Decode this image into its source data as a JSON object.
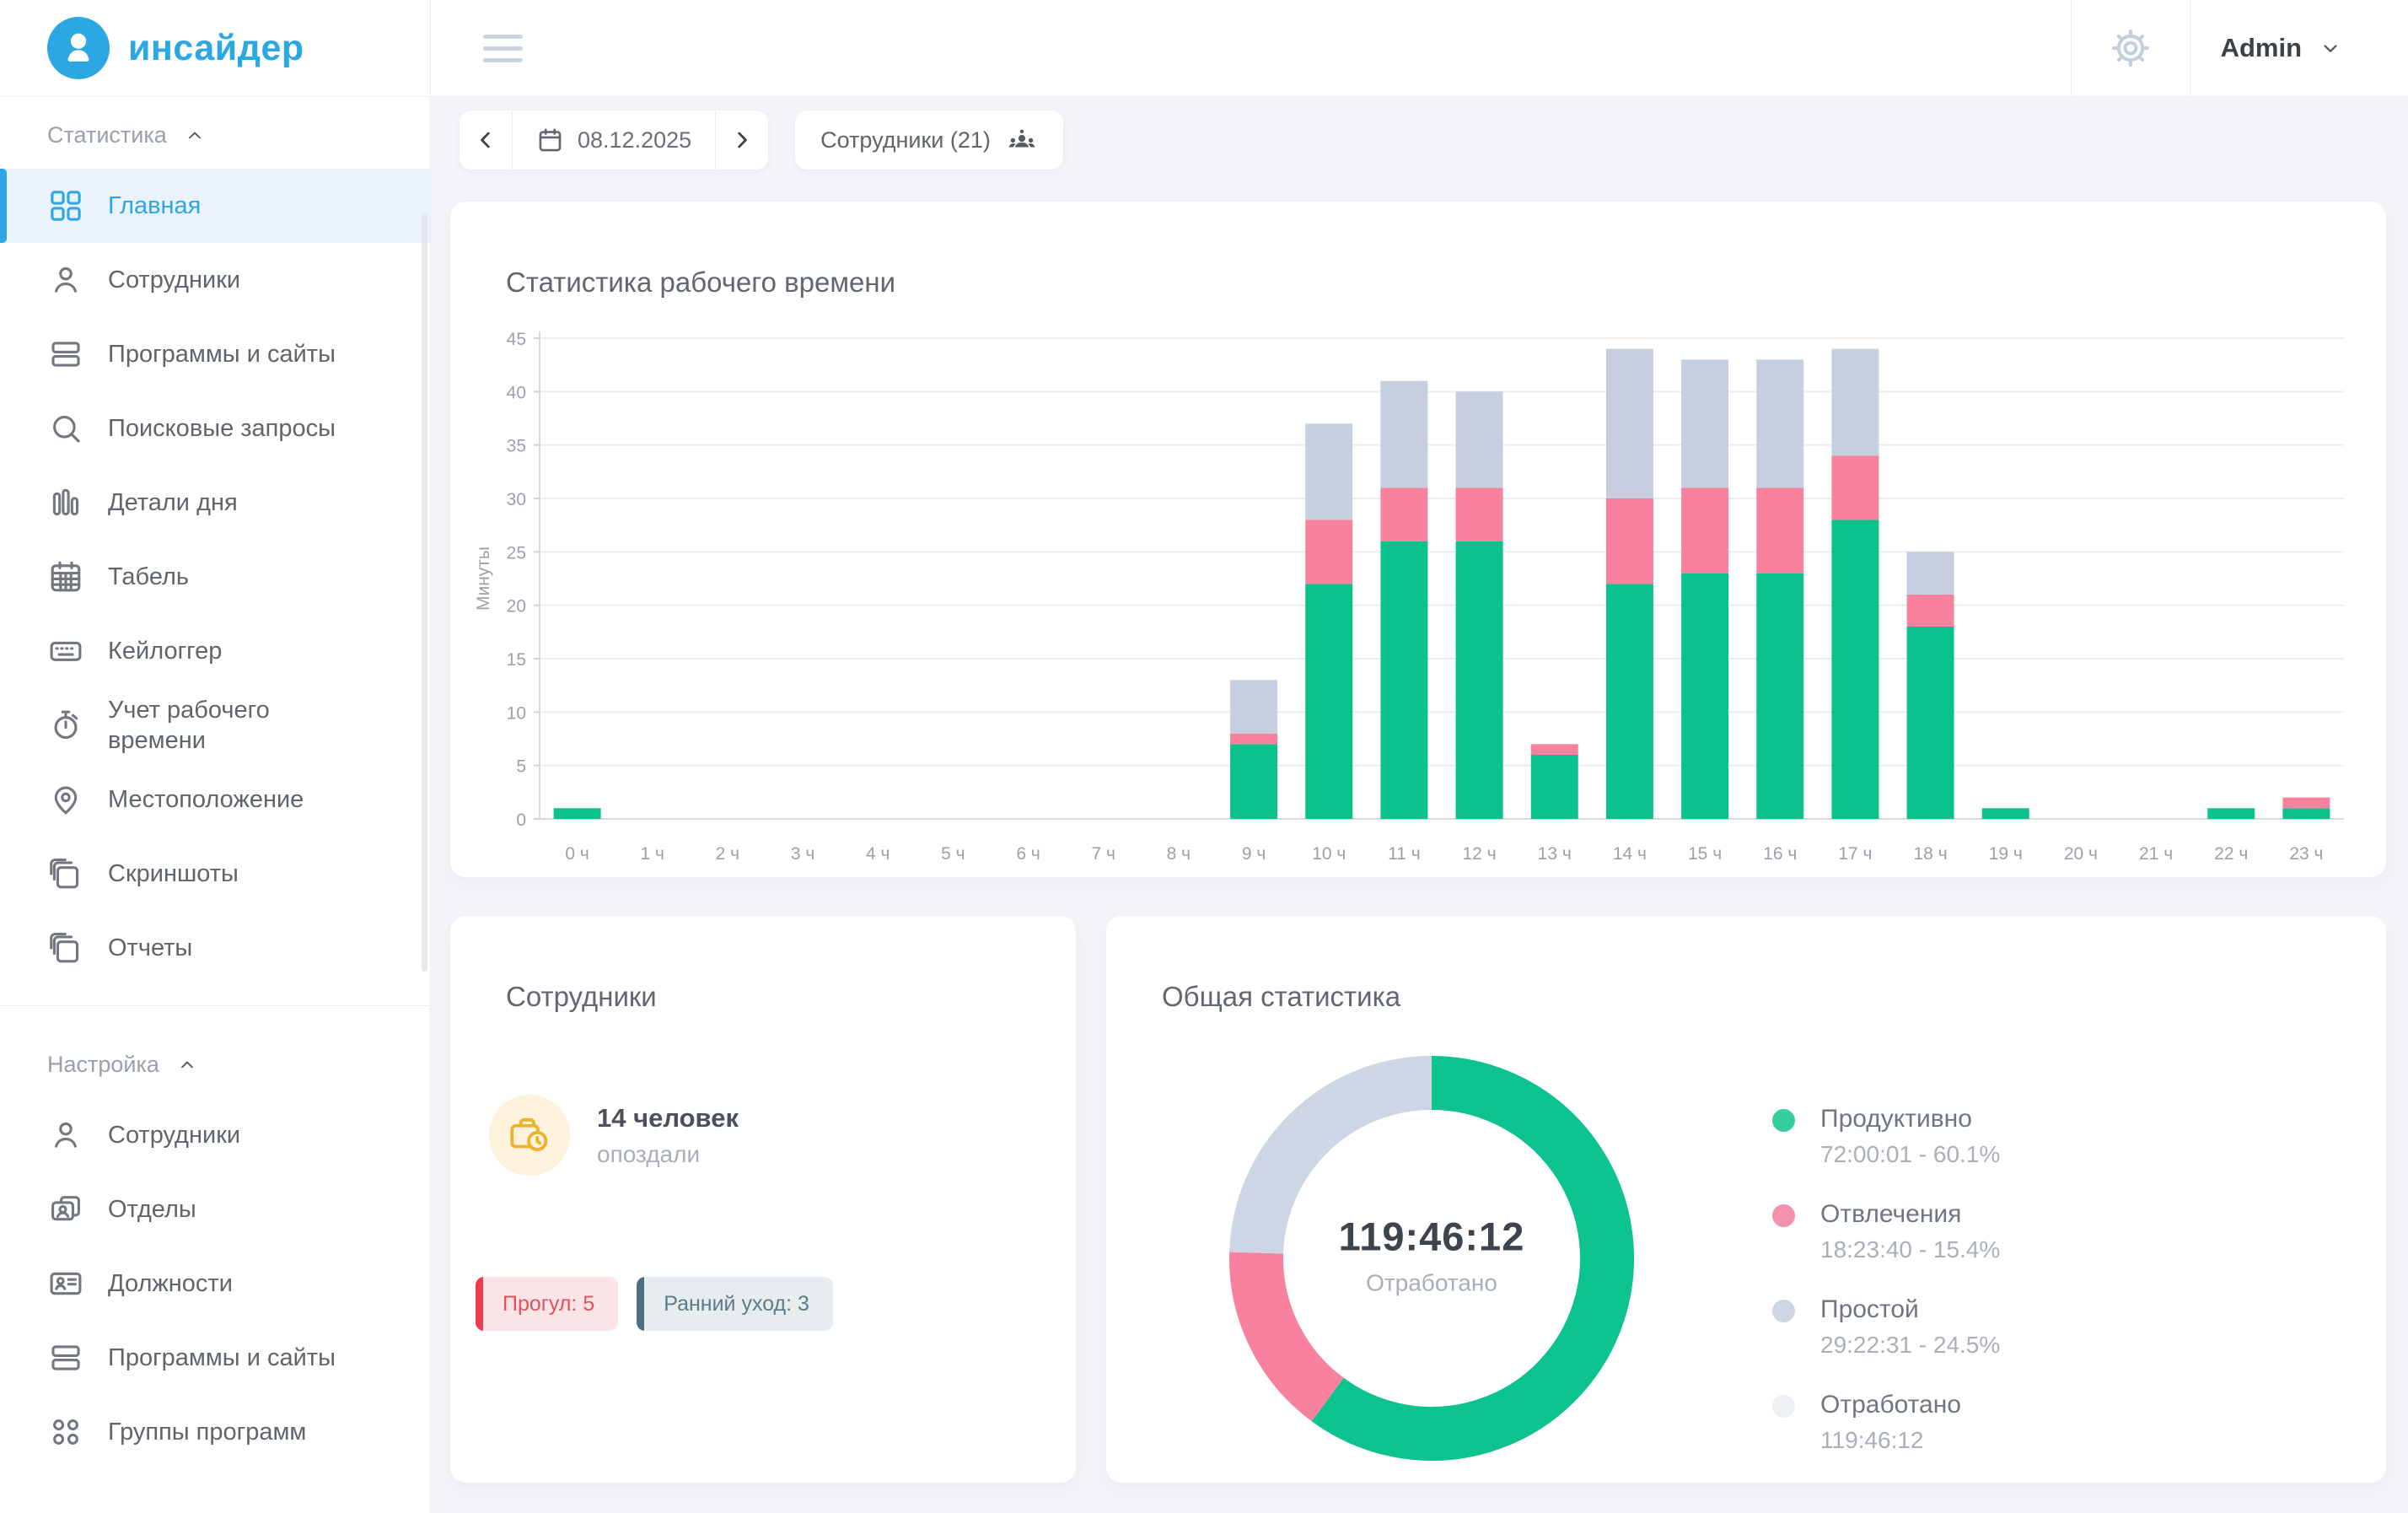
{
  "logo": {
    "text": "инсайдер",
    "brand_color": "#2ba7e4"
  },
  "header": {
    "admin_label": "Admin"
  },
  "toolbar": {
    "date": "08.12.2025",
    "employees_button": "Сотрудники (21)"
  },
  "sidebar": {
    "sections": [
      {
        "title": "Статистика",
        "key": "statistics",
        "items": [
          {
            "key": "home",
            "label": "Главная",
            "icon": "dashboard-icon",
            "active": true
          },
          {
            "key": "employees",
            "label": "Сотрудники",
            "icon": "user-icon"
          },
          {
            "key": "programs-sites",
            "label": "Программы и сайты",
            "icon": "rows-icon"
          },
          {
            "key": "search-queries",
            "label": "Поисковые запросы",
            "icon": "search-icon"
          },
          {
            "key": "day-details",
            "label": "Детали дня",
            "icon": "columns-icon"
          },
          {
            "key": "timesheet",
            "label": "Табель",
            "icon": "calendar-icon"
          },
          {
            "key": "keylogger",
            "label": "Кейлоггер",
            "icon": "keyboard-icon"
          },
          {
            "key": "time-tracking",
            "label": "Учет рабочего времени",
            "icon": "stopwatch-icon"
          },
          {
            "key": "location",
            "label": "Местоположение",
            "icon": "pin-icon"
          },
          {
            "key": "screenshots",
            "label": "Скриншоты",
            "icon": "copies-icon"
          },
          {
            "key": "reports",
            "label": "Отчеты",
            "icon": "copies-icon"
          }
        ]
      },
      {
        "title": "Настройка",
        "key": "settings",
        "items": [
          {
            "key": "employees-settings",
            "label": "Сотрудники",
            "icon": "user-icon"
          },
          {
            "key": "departments",
            "label": "Отделы",
            "icon": "idcards-icon"
          },
          {
            "key": "positions",
            "label": "Должности",
            "icon": "badge-icon"
          },
          {
            "key": "programs-sites-settings",
            "label": "Программы и сайты",
            "icon": "rows-icon"
          },
          {
            "key": "program-groups",
            "label": "Группы программ",
            "icon": "dotsgrid-icon"
          }
        ]
      }
    ]
  },
  "cards": {
    "employees": {
      "title": "Сотрудники",
      "count_text": "14 человек",
      "sub_text": "опоздали",
      "icon_bg": "#fdf3dc",
      "icon_color": "#eeb12b",
      "chips": [
        {
          "text": "Прогул: 5",
          "text_color": "#e0505e",
          "bg": "#fbe4e6",
          "bar_color": "#ef3b4e"
        },
        {
          "text": "Ранний уход: 3",
          "text_color": "#5d7b8a",
          "bg": "#e7ecee",
          "bar_color": "#4f6f80"
        }
      ]
    }
  },
  "chart_data": [
    {
      "type": "bar",
      "stacked": true,
      "title": "Статистика рабочего времени",
      "xlabel": "",
      "ylabel": "Минуты",
      "ylim": [
        0,
        45
      ],
      "ytick_step": 5,
      "grid": true,
      "legend_position": "none",
      "categories": [
        "0 ч",
        "1 ч",
        "2 ч",
        "3 ч",
        "4 ч",
        "5 ч",
        "6 ч",
        "7 ч",
        "8 ч",
        "9 ч",
        "10 ч",
        "11 ч",
        "12 ч",
        "13 ч",
        "14 ч",
        "15 ч",
        "16 ч",
        "17 ч",
        "18 ч",
        "19 ч",
        "20 ч",
        "21 ч",
        "22 ч",
        "23 ч"
      ],
      "series": [
        {
          "name": "Продуктивно",
          "color": "#0bc28d",
          "values": [
            1,
            0,
            0,
            0,
            0,
            0,
            0,
            0,
            0,
            7,
            22,
            26,
            26,
            6,
            22,
            23,
            23,
            28,
            18,
            1,
            0,
            0,
            1,
            1
          ]
        },
        {
          "name": "Отвлечения",
          "color": "#f8819d",
          "values": [
            0,
            0,
            0,
            0,
            0,
            0,
            0,
            0,
            0,
            1,
            6,
            5,
            5,
            1,
            8,
            8,
            8,
            6,
            3,
            0,
            0,
            0,
            0,
            1
          ]
        },
        {
          "name": "Простой",
          "color": "#c5cfdf",
          "values": [
            0,
            0,
            0,
            0,
            0,
            0,
            0,
            0,
            0,
            5,
            9,
            10,
            9,
            0,
            14,
            12,
            12,
            10,
            4,
            0,
            0,
            0,
            0,
            0
          ]
        }
      ]
    },
    {
      "type": "pie",
      "subtype": "donut",
      "title": "Общая статистика",
      "center_value": "119:46:12",
      "center_label": "Отработано",
      "slices": [
        {
          "label": "Продуктивно",
          "time": "72:00:01",
          "pct": 60.1,
          "color": "#0cc28e"
        },
        {
          "label": "Отвлечения",
          "time": "18:23:40",
          "pct": 15.4,
          "color": "#f8819d"
        },
        {
          "label": "Простой",
          "time": "29:22:31",
          "pct": 24.5,
          "color": "#ccd6e4"
        }
      ],
      "legend": [
        {
          "label": "Продуктивно",
          "value_text": "72:00:01 - 60.1%",
          "dot_color": "#35cf9f"
        },
        {
          "label": "Отвлечения",
          "value_text": "18:23:40 - 15.4%",
          "dot_color": "#f591ac"
        },
        {
          "label": "Простой",
          "value_text": "29:22:31 - 24.5%",
          "dot_color": "#ccd6e4"
        },
        {
          "label": "Отработано",
          "value_text": "119:46:12",
          "dot_color": "#edf0f3"
        }
      ]
    }
  ]
}
